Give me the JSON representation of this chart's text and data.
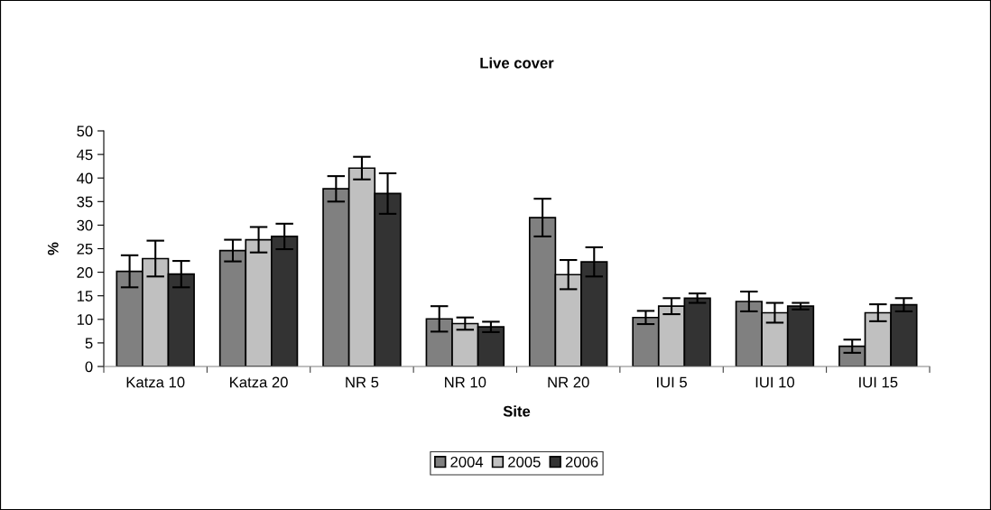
{
  "chart_data": {
    "type": "bar",
    "title": "Live cover",
    "xlabel": "Site",
    "ylabel": "%",
    "categories": [
      "Katza 10",
      "Katza 20",
      "NR 5",
      "NR 10",
      "NR 20",
      "IUI 5",
      "IUI 10",
      "IUI 15"
    ],
    "series": [
      {
        "name": "2004",
        "color": "#808080",
        "values": [
          20.2,
          24.6,
          37.7,
          10.1,
          31.6,
          10.4,
          13.8,
          4.3
        ],
        "errors": [
          3.4,
          2.3,
          2.7,
          2.7,
          4.0,
          1.4,
          2.1,
          1.4
        ]
      },
      {
        "name": "2005",
        "color": "#c0c0c0",
        "values": [
          22.9,
          26.9,
          42.1,
          9.1,
          19.5,
          12.8,
          11.4,
          11.4
        ],
        "errors": [
          3.8,
          2.7,
          2.4,
          1.3,
          3.1,
          1.7,
          2.1,
          1.8
        ]
      },
      {
        "name": "2006",
        "color": "#333333",
        "values": [
          19.6,
          27.6,
          36.7,
          8.4,
          22.2,
          14.5,
          12.8,
          13.1
        ],
        "errors": [
          2.8,
          2.7,
          4.3,
          1.1,
          3.1,
          1.0,
          0.7,
          1.4
        ]
      }
    ],
    "ylim": [
      0,
      50
    ],
    "yticks": [
      0,
      5,
      10,
      15,
      20,
      25,
      30,
      35,
      40,
      45,
      50
    ],
    "grid": false,
    "legend": "bottom"
  }
}
